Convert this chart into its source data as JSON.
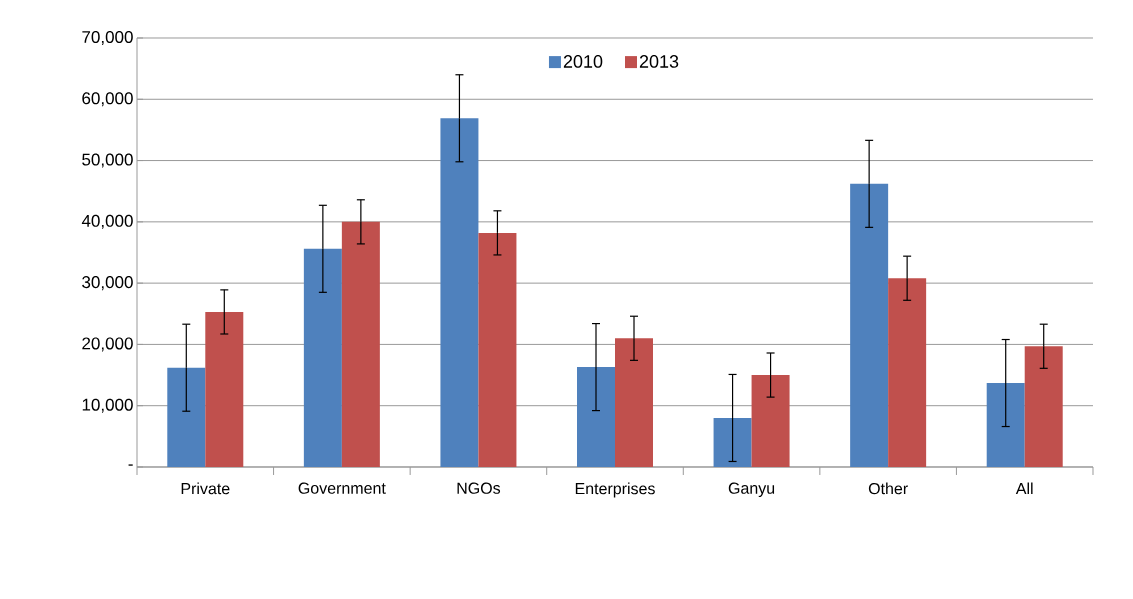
{
  "chart_data": {
    "type": "bar",
    "categories": [
      "Private",
      "Government",
      "NGOs",
      "Enterprises",
      "Ganyu",
      "Other",
      "All"
    ],
    "series": [
      {
        "name": "2010",
        "color": "#4f81bd",
        "values": [
          16200,
          35600,
          56900,
          16300,
          8000,
          46200,
          13700
        ],
        "errors": [
          7100,
          7100,
          7100,
          7100,
          7100,
          7100,
          7100
        ]
      },
      {
        "name": "2013",
        "color": "#c0504d",
        "values": [
          25300,
          40000,
          38200,
          21000,
          15000,
          30800,
          19700
        ],
        "errors": [
          3600,
          3600,
          3600,
          3600,
          3600,
          3600,
          3600
        ]
      }
    ],
    "ylim": [
      0,
      70000
    ],
    "yticks": [
      {
        "value": 0,
        "label": "-"
      },
      {
        "value": 10000,
        "label": "10,000"
      },
      {
        "value": 20000,
        "label": "20,000"
      },
      {
        "value": 30000,
        "label": "30,000"
      },
      {
        "value": 40000,
        "label": "40,000"
      },
      {
        "value": 50000,
        "label": "50,000"
      },
      {
        "value": 60000,
        "label": "60,000"
      },
      {
        "value": 70000,
        "label": "70,000"
      }
    ],
    "grid": "y",
    "legend": "top"
  }
}
